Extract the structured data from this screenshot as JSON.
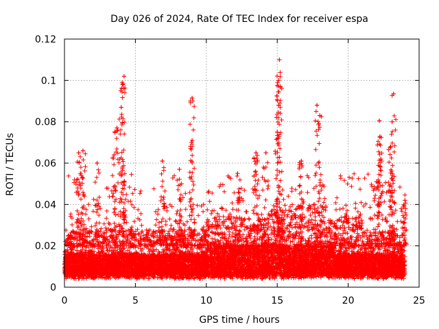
{
  "chart_data": {
    "type": "scatter",
    "title": "Day 026 of 2024, Rate Of TEC Index for receiver espa",
    "xlabel": "GPS time / hours",
    "ylabel": "ROTI / TECUs",
    "xlim": [
      0,
      25
    ],
    "ylim": [
      0,
      0.12
    ],
    "xticks": [
      "0",
      "5",
      "10",
      "15",
      "20",
      "25"
    ],
    "yticks": [
      "0",
      "0.02",
      "0.04",
      "0.06",
      "0.08",
      "0.1",
      "0.12"
    ],
    "xtick_values": [
      0,
      5,
      10,
      15,
      20,
      25
    ],
    "ytick_values": [
      0,
      0.02,
      0.04,
      0.06,
      0.08,
      0.1,
      0.12
    ],
    "grid": true,
    "marker": "+",
    "color": "#ff0000",
    "series": [
      {
        "name": "ROTI",
        "note": "dense band roughly 0.003–0.03 TECU/s from 0 to 24 h; highlighted peaks listed",
        "peaks": [
          {
            "x": 0.3,
            "y": 0.025
          },
          {
            "x": 1.0,
            "y": 0.065
          },
          {
            "x": 1.3,
            "y": 0.066
          },
          {
            "x": 2.3,
            "y": 0.06
          },
          {
            "x": 3.5,
            "y": 0.064
          },
          {
            "x": 3.7,
            "y": 0.077
          },
          {
            "x": 4.0,
            "y": 0.087
          },
          {
            "x": 4.1,
            "y": 0.098
          },
          {
            "x": 4.2,
            "y": 0.102
          },
          {
            "x": 6.9,
            "y": 0.061
          },
          {
            "x": 8.1,
            "y": 0.057
          },
          {
            "x": 9.0,
            "y": 0.0915
          },
          {
            "x": 9.0,
            "y": 0.071
          },
          {
            "x": 12.2,
            "y": 0.055
          },
          {
            "x": 13.5,
            "y": 0.065
          },
          {
            "x": 14.2,
            "y": 0.065
          },
          {
            "x": 15.0,
            "y": 0.075
          },
          {
            "x": 15.1,
            "y": 0.088
          },
          {
            "x": 15.1,
            "y": 0.1
          },
          {
            "x": 15.15,
            "y": 0.11
          },
          {
            "x": 16.7,
            "y": 0.061
          },
          {
            "x": 17.8,
            "y": 0.088
          },
          {
            "x": 18.0,
            "y": 0.083
          },
          {
            "x": 22.0,
            "y": 0.051
          },
          {
            "x": 22.2,
            "y": 0.0805
          },
          {
            "x": 22.3,
            "y": 0.062
          },
          {
            "x": 23.0,
            "y": 0.068
          },
          {
            "x": 23.1,
            "y": 0.08
          },
          {
            "x": 23.2,
            "y": 0.0935
          },
          {
            "x": 24.0,
            "y": 0.042
          }
        ]
      }
    ]
  }
}
